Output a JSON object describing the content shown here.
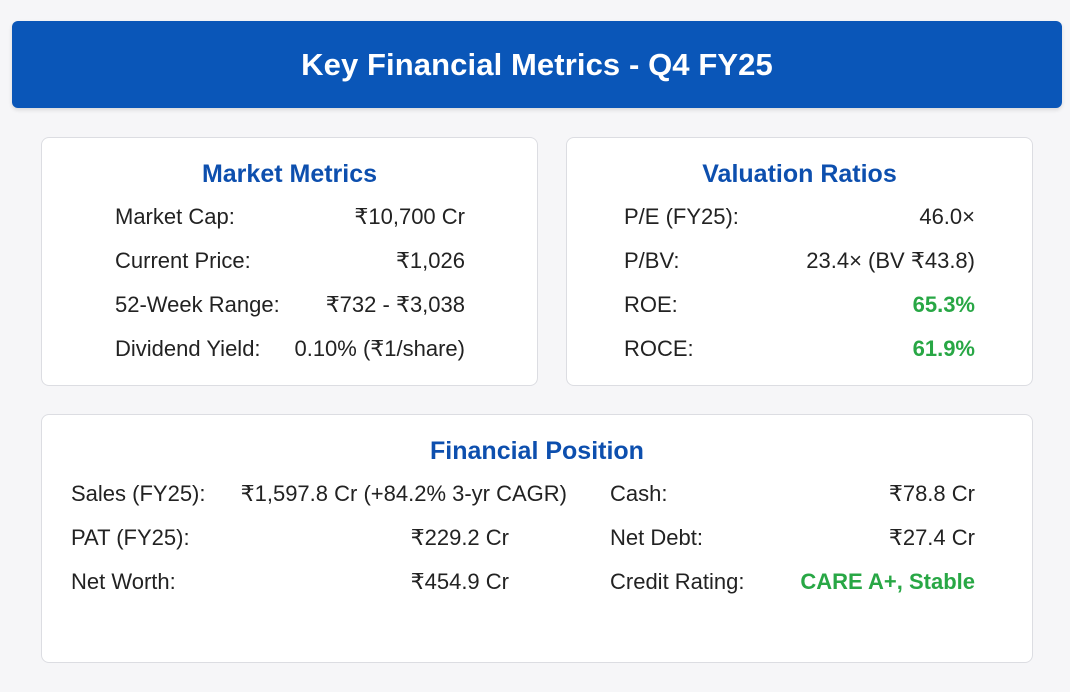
{
  "header": {
    "title": "Key Financial Metrics - Q4 FY25"
  },
  "market_metrics": {
    "title": "Market Metrics",
    "rows": [
      {
        "label": "Market Cap:",
        "value": "₹10,700 Cr"
      },
      {
        "label": "Current Price:",
        "value": "₹1,026"
      },
      {
        "label": "52-Week Range:",
        "value": "₹732 - ₹3,038"
      },
      {
        "label": "Dividend Yield:",
        "value": "0.10% (₹1/share)"
      }
    ]
  },
  "valuation_ratios": {
    "title": "Valuation Ratios",
    "rows": [
      {
        "label": "P/E (FY25):",
        "value": "46.0×"
      },
      {
        "label": "P/BV:",
        "value": "23.4× (BV ₹43.8)"
      },
      {
        "label": "ROE:",
        "value": "65.3%"
      },
      {
        "label": "ROCE:",
        "value": "61.9%"
      }
    ]
  },
  "financial_position": {
    "title": "Financial Position",
    "left_rows": [
      {
        "label": "Sales (FY25):",
        "value": "₹1,597.8 Cr (+84.2% 3-yr CAGR)"
      },
      {
        "label": "PAT (FY25):",
        "value": "₹229.2 Cr"
      },
      {
        "label": "Net Worth:",
        "value": "₹454.9 Cr"
      }
    ],
    "right_rows": [
      {
        "label": "Cash:",
        "value": "₹78.8 Cr"
      },
      {
        "label": "Net Debt:",
        "value": "₹27.4 Cr"
      },
      {
        "label": "Credit Rating:",
        "value": "CARE A+, Stable"
      }
    ]
  },
  "colors": {
    "header_bg": "#0a56b8",
    "title_blue": "#0d4fae",
    "positive_green": "#28a745"
  }
}
